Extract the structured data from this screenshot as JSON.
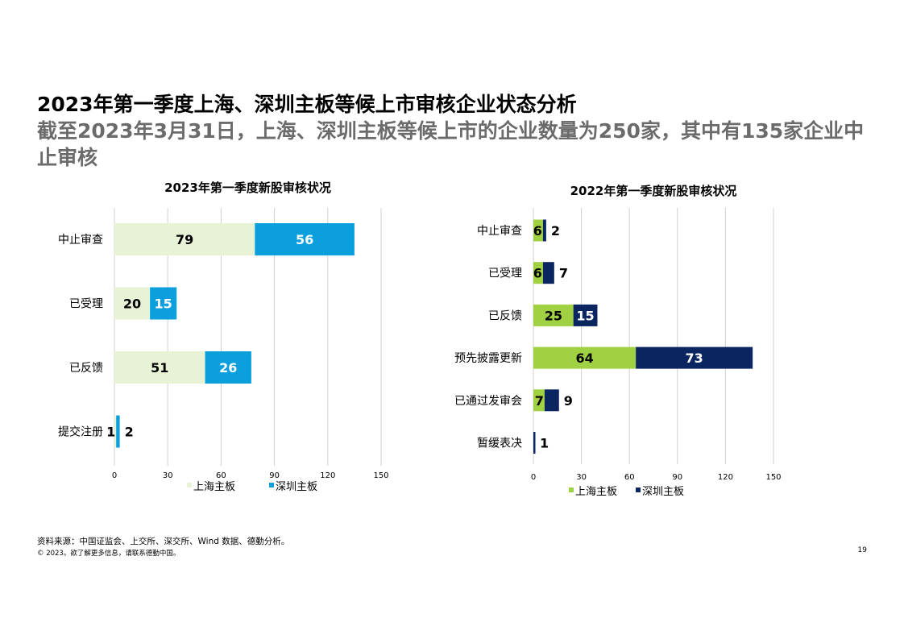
{
  "page": {
    "title": "2023年第一季度上海、深圳主板等候上市审核企业状态分析",
    "subtitle": "截至2023年3月31日，上海、深圳主板等候上市的企业数量为250家，其中有135家企业中止审核",
    "source": "资料来源：中国证监会、上交所、深交所、Wind 数据、德勤分析。",
    "copyright": "© 2023。欲了解更多信息，请联系德勤中国。",
    "page_number": "19"
  },
  "chart_data": [
    {
      "type": "bar",
      "orientation": "horizontal",
      "stacked": true,
      "title": "2023年第一季度新股审核状况",
      "categories": [
        "中止审查",
        "已受理",
        "已反馈",
        "提交注册"
      ],
      "series": [
        {
          "name": "上海主板",
          "values": [
            79,
            20,
            51,
            1
          ],
          "color": "#e8f3d6",
          "label_color": "#000000"
        },
        {
          "name": "深圳主板",
          "values": [
            56,
            15,
            26,
            2
          ],
          "color": "#0ba0dd",
          "label_color": "#ffffff"
        }
      ],
      "xlim": [
        0,
        150
      ],
      "xticks": [
        0,
        30,
        60,
        90,
        120,
        150
      ],
      "grid": true,
      "legend": "bottom"
    },
    {
      "type": "bar",
      "orientation": "horizontal",
      "stacked": true,
      "title": "2022年第一季度新股审核状况",
      "categories": [
        "中止审查",
        "已受理",
        "已反馈",
        "预先披露更新",
        "已通过发审会",
        "暂缓表决"
      ],
      "series": [
        {
          "name": "上海主板",
          "values": [
            6,
            6,
            25,
            64,
            7,
            0
          ],
          "color": "#9fd142",
          "label_color": "#000000"
        },
        {
          "name": "深圳主板",
          "values": [
            2,
            7,
            15,
            73,
            9,
            1
          ],
          "color": "#0b2560",
          "label_color": "#ffffff"
        }
      ],
      "xlim": [
        0,
        150
      ],
      "xticks": [
        0,
        30,
        60,
        90,
        120,
        150
      ],
      "grid": true,
      "legend": "bottom"
    }
  ]
}
